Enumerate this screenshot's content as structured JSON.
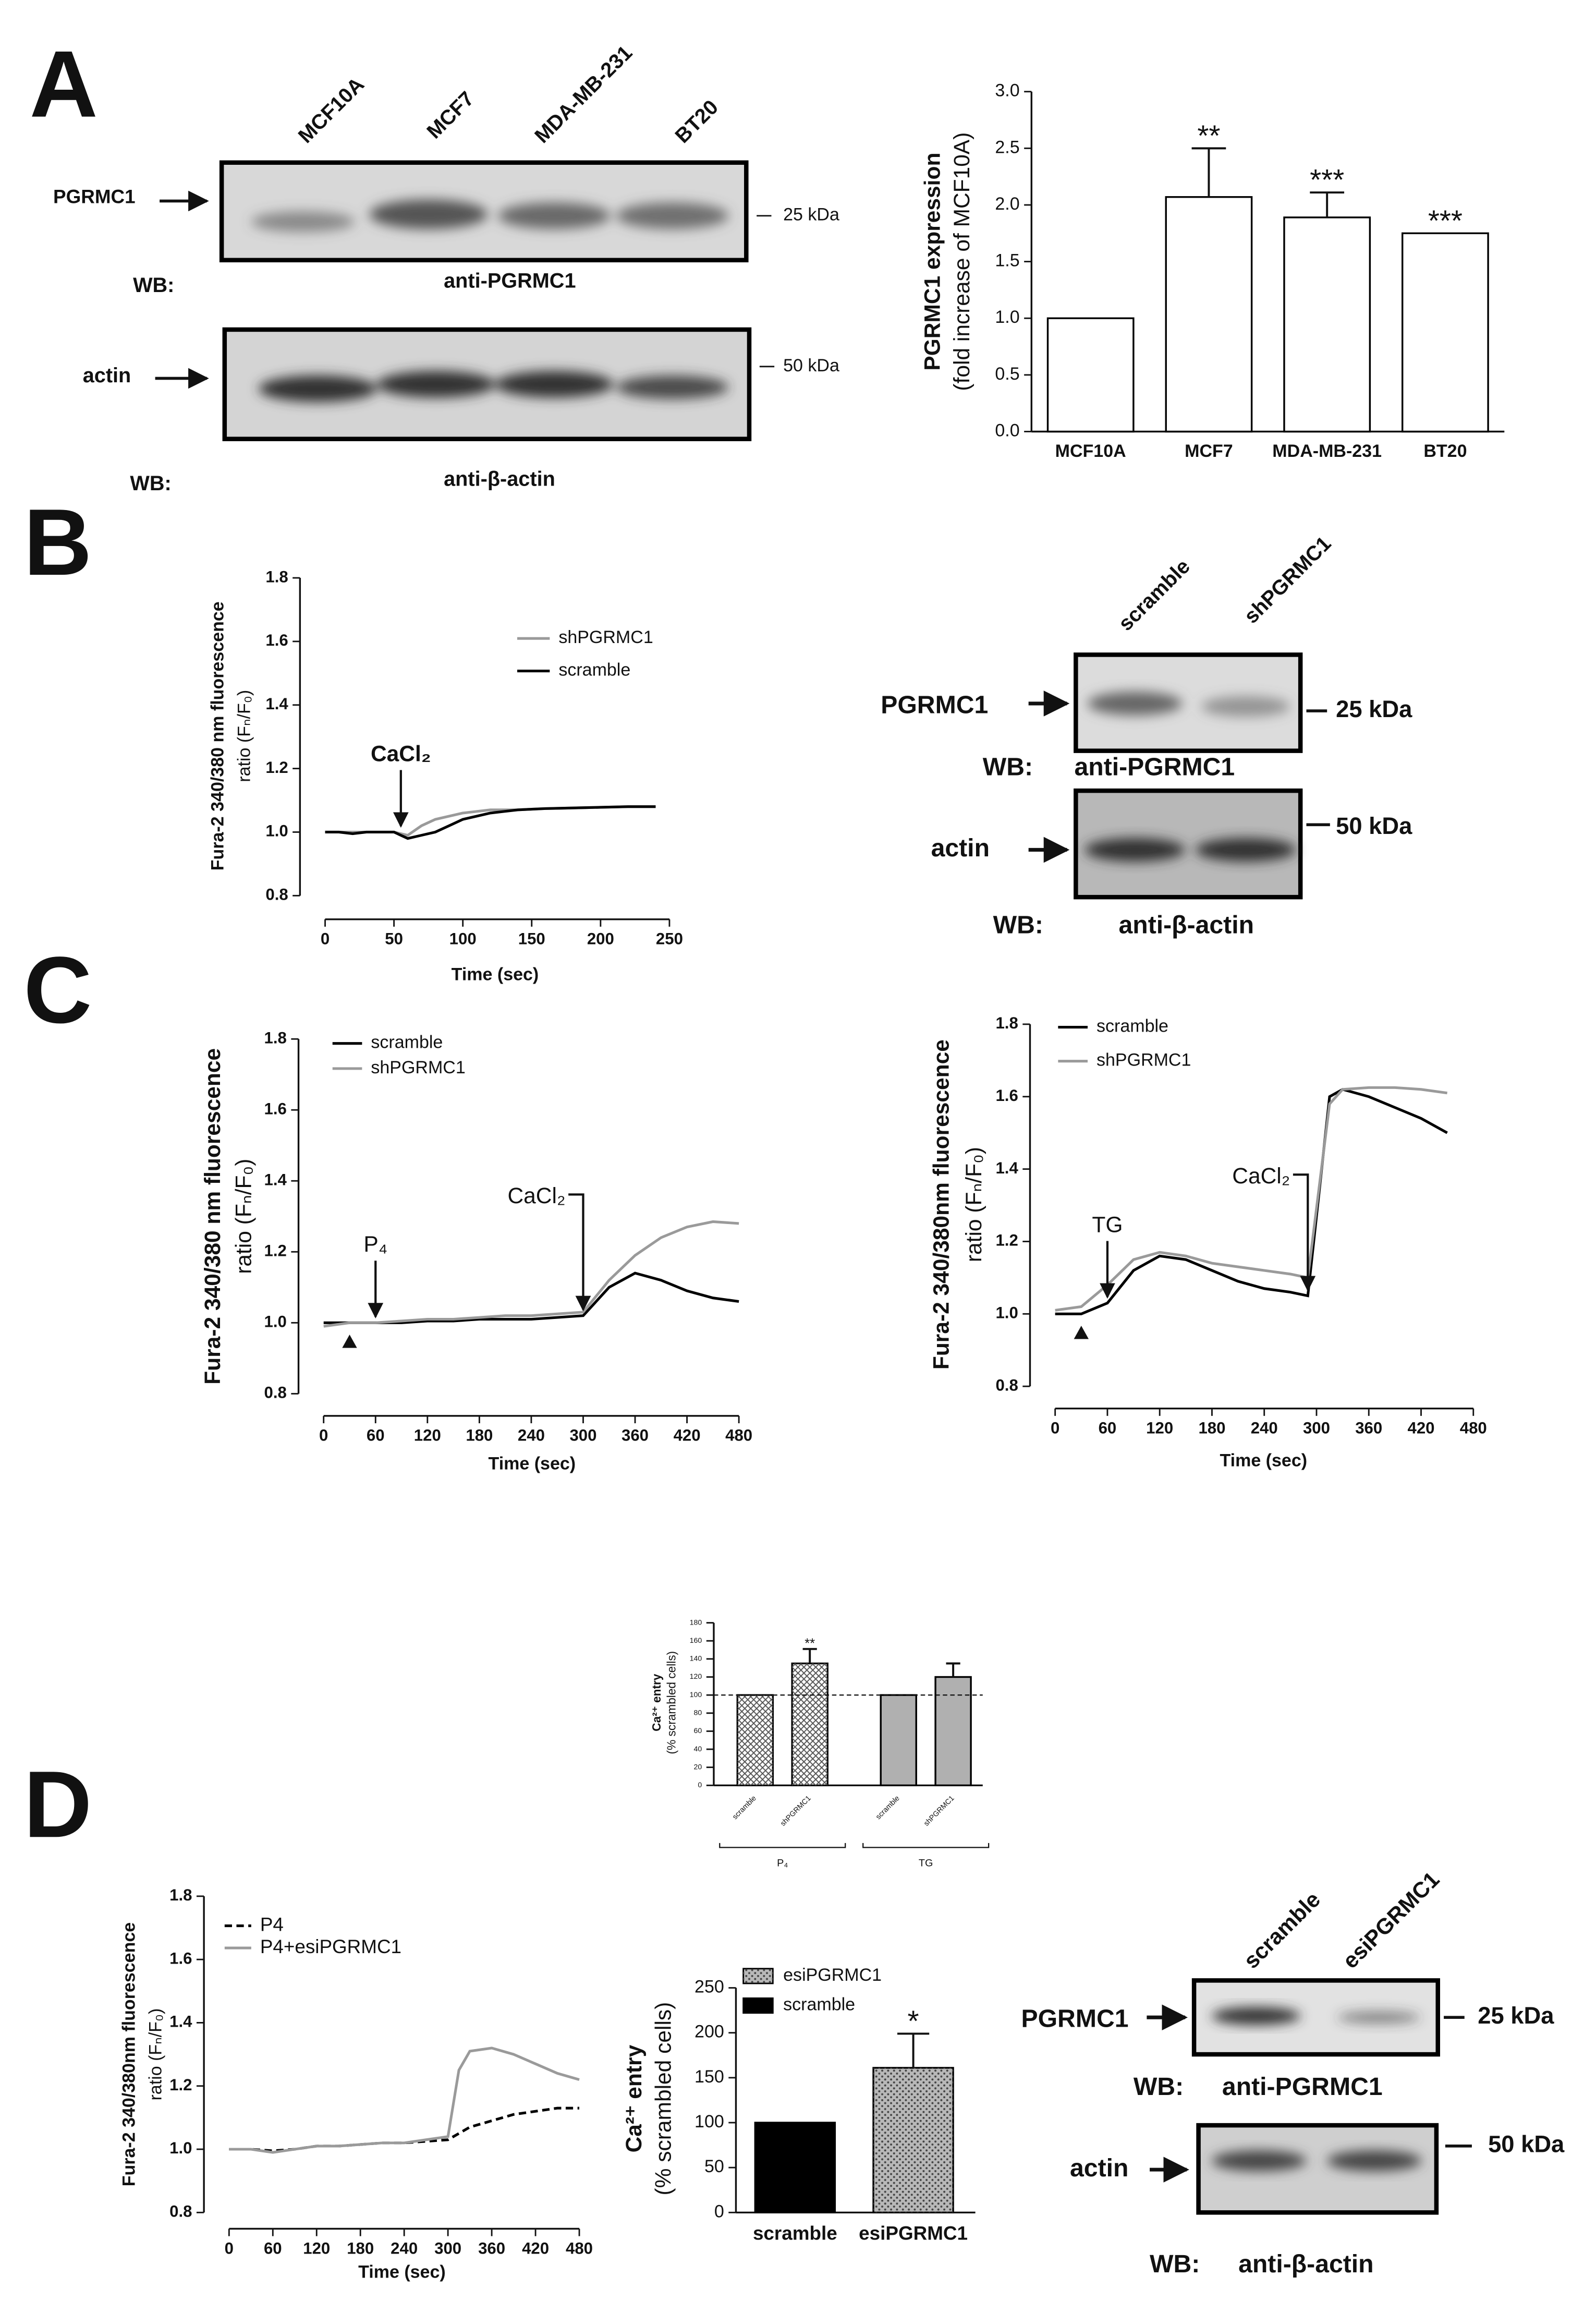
{
  "figure": {
    "panel_labels": [
      "A",
      "B",
      "C",
      "D"
    ]
  },
  "blots": [
    {
      "lanes": [
        "MCF10A",
        "MCF7",
        "MDA-MB-231",
        "BT20"
      ],
      "wb_label": "WB:",
      "bands": [
        {
          "name": "PGRMC1",
          "size": "25 kDa",
          "antibody": "anti-PGRMC1"
        },
        {
          "name": "actin",
          "size": "50 kDa",
          "antibody": "anti-β-actin"
        }
      ]
    },
    {
      "lanes": [
        "scramble",
        "shPGRMC1"
      ],
      "wb_label": "WB:",
      "bands": [
        {
          "name": "PGRMC1",
          "size": "25 kDa",
          "antibody": "anti-PGRMC1"
        },
        {
          "name": "actin",
          "size": "50 kDa",
          "antibody": "anti-β-actin"
        }
      ]
    },
    {
      "lanes": [
        "scramble",
        "esiPGRMC1"
      ],
      "wb_label": "WB:",
      "bands": [
        {
          "name": "PGRMC1",
          "size": "25 kDa",
          "antibody": "anti-PGRMC1"
        },
        {
          "name": "actin",
          "size": "50 kDa",
          "antibody": "anti-β-actin"
        }
      ]
    }
  ],
  "chart_data": [
    {
      "type": "bar",
      "categories": [
        "MCF10A",
        "MCF7",
        "MDA-MB-231",
        "BT20"
      ],
      "values": [
        1.0,
        2.07,
        1.89,
        1.75
      ],
      "errors": [
        null,
        0.43,
        0.22,
        null
      ],
      "significance": [
        null,
        "**",
        "***",
        "***"
      ],
      "color": "#ffffff",
      "edge": "#000000",
      "y_label": [
        "PGRMC1 expression",
        "(fold increase of MCF10A)"
      ],
      "ylim": [
        0,
        3
      ],
      "yticks": [
        {
          "value": 0,
          "label": "0.0"
        },
        0.5,
        {
          "value": 1,
          "label": "1.0"
        },
        1.5,
        {
          "value": 2,
          "label": "2.0"
        },
        2.5,
        {
          "value": 3,
          "label": "3.0"
        }
      ]
    },
    {
      "type": "line",
      "x_label": "Time (sec)",
      "y_label": [
        "Fura-2 340/380 nm fluorescence",
        "ratio  (Fₙ/F₀)"
      ],
      "x": [
        0,
        10,
        20,
        30,
        40,
        50,
        60,
        70,
        80,
        90,
        100,
        110,
        120,
        130,
        140,
        150,
        160,
        170,
        180,
        190,
        200,
        210,
        220,
        230,
        240
      ],
      "series": [
        {
          "name": "shPGRMC1",
          "color": "#9a9a9a",
          "values": [
            1.0,
            1.0,
            1.0,
            1.0,
            1.0,
            1.0,
            0.99,
            1.02,
            1.04,
            1.05,
            1.06,
            1.065,
            1.07,
            1.07,
            1.07,
            1.072,
            1.074,
            1.075,
            1.076,
            1.077,
            1.078,
            1.079,
            1.08,
            1.08,
            1.08
          ]
        },
        {
          "name": "scramble",
          "color": "#000000",
          "values": [
            1.0,
            1.0,
            0.995,
            1.0,
            1.0,
            1.0,
            0.98,
            0.99,
            1.0,
            1.02,
            1.04,
            1.05,
            1.06,
            1.065,
            1.07,
            1.072,
            1.074,
            1.075,
            1.076,
            1.077,
            1.078,
            1.079,
            1.08,
            1.08,
            1.08
          ]
        }
      ],
      "annotations": [
        {
          "text": "CaCl₂",
          "x": 55,
          "style": "arrow"
        }
      ],
      "xlim": [
        0,
        250
      ],
      "xticks": [
        0,
        50,
        100,
        150,
        200,
        250
      ],
      "ylim": [
        0.8,
        1.8
      ],
      "yticks": [
        0.8,
        {
          "value": 1.0,
          "label": "1.0"
        },
        1.2,
        1.4,
        1.6,
        1.8
      ]
    },
    {
      "type": "line",
      "x_label": "Time (sec)",
      "y_label": [
        "Fura-2 340/380 nm fluorescence",
        "ratio  (Fₙ/F₀)"
      ],
      "x": [
        0,
        30,
        60,
        90,
        120,
        150,
        180,
        210,
        240,
        270,
        300,
        330,
        360,
        390,
        420,
        450,
        480
      ],
      "series": [
        {
          "name": "scramble",
          "color": "#000000",
          "values": [
            1.0,
            1.0,
            1.0,
            1.0,
            1.005,
            1.005,
            1.01,
            1.01,
            1.01,
            1.015,
            1.02,
            1.1,
            1.14,
            1.12,
            1.09,
            1.07,
            1.06
          ]
        },
        {
          "name": "shPGRMC1",
          "color": "#9a9a9a",
          "values": [
            0.99,
            1.0,
            1.0,
            1.005,
            1.01,
            1.01,
            1.015,
            1.02,
            1.02,
            1.025,
            1.03,
            1.12,
            1.19,
            1.24,
            1.27,
            1.285,
            1.28
          ]
        }
      ],
      "annotations": [
        {
          "text": "P₄",
          "x": 60,
          "style": "arrow"
        },
        {
          "text": "CaCl₂",
          "x": 300,
          "style": "hook"
        }
      ],
      "markers": [
        {
          "x": 30,
          "shape": "triangle"
        }
      ],
      "xlim": [
        0,
        480
      ],
      "xticks": [
        0,
        60,
        120,
        180,
        240,
        300,
        360,
        420,
        480
      ],
      "ylim": [
        0.8,
        1.8
      ],
      "yticks": [
        0.8,
        {
          "value": 1.0,
          "label": "1.0"
        },
        1.2,
        1.4,
        1.6,
        1.8
      ]
    },
    {
      "type": "line",
      "x_label": "Time (sec)",
      "y_label": [
        "Fura-2  340/380nm fluorescence",
        "ratio (Fₙ/F₀)"
      ],
      "x": [
        0,
        30,
        60,
        90,
        120,
        150,
        180,
        210,
        240,
        270,
        290,
        315,
        330,
        360,
        390,
        420,
        450
      ],
      "series": [
        {
          "name": "scramble",
          "color": "#000000",
          "values": [
            1.0,
            1.0,
            1.03,
            1.12,
            1.16,
            1.15,
            1.12,
            1.09,
            1.07,
            1.06,
            1.05,
            1.6,
            1.62,
            1.6,
            1.57,
            1.54,
            1.5
          ]
        },
        {
          "name": "shPGRMC1",
          "color": "#9a9a9a",
          "values": [
            1.01,
            1.02,
            1.08,
            1.15,
            1.17,
            1.16,
            1.14,
            1.13,
            1.12,
            1.11,
            1.1,
            1.58,
            1.62,
            1.625,
            1.625,
            1.62,
            1.61
          ]
        }
      ],
      "annotations": [
        {
          "text": "TG",
          "x": 60,
          "style": "arrow"
        },
        {
          "text": "CaCl₂",
          "x": 290,
          "style": "hook"
        }
      ],
      "markers": [
        {
          "x": 30,
          "shape": "triangle"
        }
      ],
      "xlim": [
        0,
        480
      ],
      "xticks": [
        0,
        60,
        120,
        180,
        240,
        300,
        360,
        420,
        480
      ],
      "ylim": [
        0.8,
        1.8
      ],
      "yticks": [
        0.8,
        {
          "value": 1.0,
          "label": "1.0"
        },
        1.2,
        1.4,
        1.6,
        1.8
      ]
    },
    {
      "type": "bar",
      "categories": [
        "scramble",
        "shPGRMC1",
        "scramble",
        "shPGRMC1"
      ],
      "groups": [
        "P₄",
        "TG"
      ],
      "values": [
        100,
        135,
        100,
        120
      ],
      "errors": [
        null,
        16,
        null,
        15
      ],
      "significance": [
        null,
        "**",
        null,
        null
      ],
      "colors": [
        "#ffffff",
        "#ffffff",
        "#b0b0b0",
        "#b0b0b0"
      ],
      "patterns": [
        "crosshatch",
        "crosshatch",
        "solid",
        "solid"
      ],
      "edge": "#000000",
      "reference_line": 100,
      "y_label": [
        "Ca²⁺ entry",
        "(% scrambled cells)"
      ],
      "ylim": [
        0,
        180
      ],
      "yticks": [
        0,
        20,
        40,
        60,
        80,
        100,
        120,
        140,
        160,
        180
      ]
    },
    {
      "type": "line",
      "x_label": "Time (sec)",
      "y_label": [
        "Fura-2  340/380nm fluorescence",
        "ratio (Fₙ/F₀)"
      ],
      "x": [
        0,
        30,
        60,
        90,
        120,
        150,
        180,
        210,
        240,
        270,
        300,
        315,
        330,
        360,
        390,
        420,
        450,
        480
      ],
      "series": [
        {
          "name": "P4",
          "color": "#000000",
          "style": "dashed",
          "values": [
            1.0,
            1.0,
            0.995,
            1.0,
            1.01,
            1.01,
            1.015,
            1.02,
            1.02,
            1.025,
            1.03,
            1.05,
            1.07,
            1.09,
            1.11,
            1.12,
            1.13,
            1.13
          ]
        },
        {
          "name": "P4+esiPGRMC1",
          "color": "#9a9a9a",
          "values": [
            1.0,
            1.0,
            0.99,
            1.0,
            1.01,
            1.01,
            1.015,
            1.02,
            1.02,
            1.03,
            1.04,
            1.25,
            1.31,
            1.32,
            1.3,
            1.27,
            1.24,
            1.22
          ]
        }
      ],
      "xlim": [
        0,
        480
      ],
      "xticks": [
        0,
        60,
        120,
        180,
        240,
        300,
        360,
        420,
        480
      ],
      "ylim": [
        0.8,
        1.8
      ],
      "yticks": [
        0.8,
        {
          "value": 1.0,
          "label": "1.0"
        },
        1.2,
        1.4,
        1.6,
        1.8
      ]
    },
    {
      "type": "bar",
      "categories": [
        "scramble",
        "esiPGRMC1"
      ],
      "values": [
        100,
        161
      ],
      "errors": [
        null,
        38
      ],
      "significance": [
        null,
        "*"
      ],
      "colors": [
        "#000000",
        "#b8b8b8"
      ],
      "patterns": [
        "solid",
        "dots"
      ],
      "edge": "#000000",
      "legend": "top-left",
      "y_label": [
        "Ca²⁺ entry",
        "(% scrambled cells)"
      ],
      "ylim": [
        0,
        250
      ],
      "yticks": [
        0,
        50,
        100,
        150,
        200,
        250
      ]
    }
  ]
}
